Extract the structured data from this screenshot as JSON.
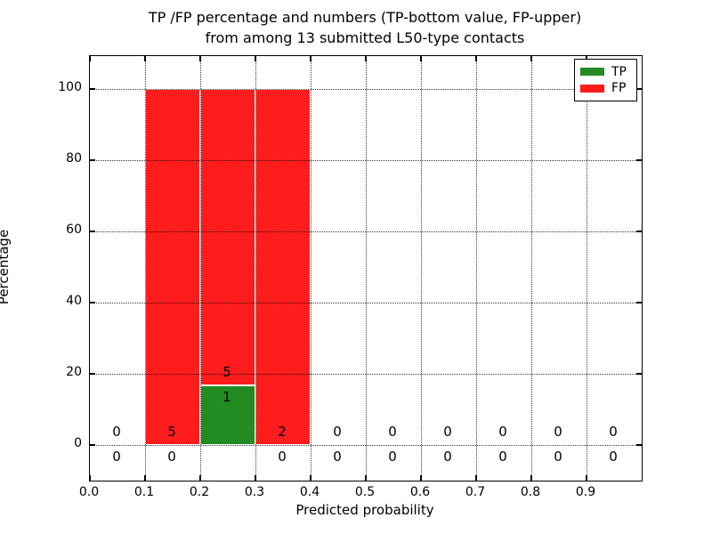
{
  "chart_data": {
    "type": "bar",
    "title_line1": "TP /FP percentage and numbers (TP-bottom value, FP-upper)",
    "title_line2": "from among 13 submitted L50-type contacts",
    "title": "TP /FP percentage and numbers (TP-bottom value, FP-upper) from among 13 submitted L50-type contacts",
    "xlabel": "Predicted probability",
    "ylabel": "Percentage",
    "total_contacts": 13,
    "xlim": [
      0.0,
      1.0
    ],
    "ylim": [
      -10,
      109
    ],
    "grid": "dotted",
    "legend_position": "upper-right",
    "bin_width": 0.1,
    "bin_edges": [
      0.0,
      0.1,
      0.2,
      0.3,
      0.4,
      0.5,
      0.6,
      0.7,
      0.8,
      0.9,
      1.0
    ],
    "bin_centers": [
      0.05,
      0.15,
      0.25,
      0.35,
      0.45,
      0.55,
      0.65,
      0.75,
      0.85,
      0.95
    ],
    "xtick_labels": [
      "0.0",
      "0.1",
      "0.2",
      "0.3",
      "0.4",
      "0.5",
      "0.6",
      "0.7",
      "0.8",
      "0.9"
    ],
    "ytick_values": [
      0,
      20,
      40,
      60,
      80,
      100
    ],
    "series": [
      {
        "name": "TP",
        "color": "#228b22",
        "percent": [
          0,
          0,
          16.67,
          0,
          0,
          0,
          0,
          0,
          0,
          0
        ],
        "counts": [
          0,
          0,
          1,
          0,
          0,
          0,
          0,
          0,
          0,
          0
        ]
      },
      {
        "name": "FP",
        "color": "#ff1c1c",
        "percent": [
          0,
          100,
          83.33,
          100,
          0,
          0,
          0,
          0,
          0,
          0
        ],
        "counts": [
          0,
          5,
          5,
          2,
          0,
          0,
          0,
          0,
          0,
          0
        ]
      }
    ]
  }
}
